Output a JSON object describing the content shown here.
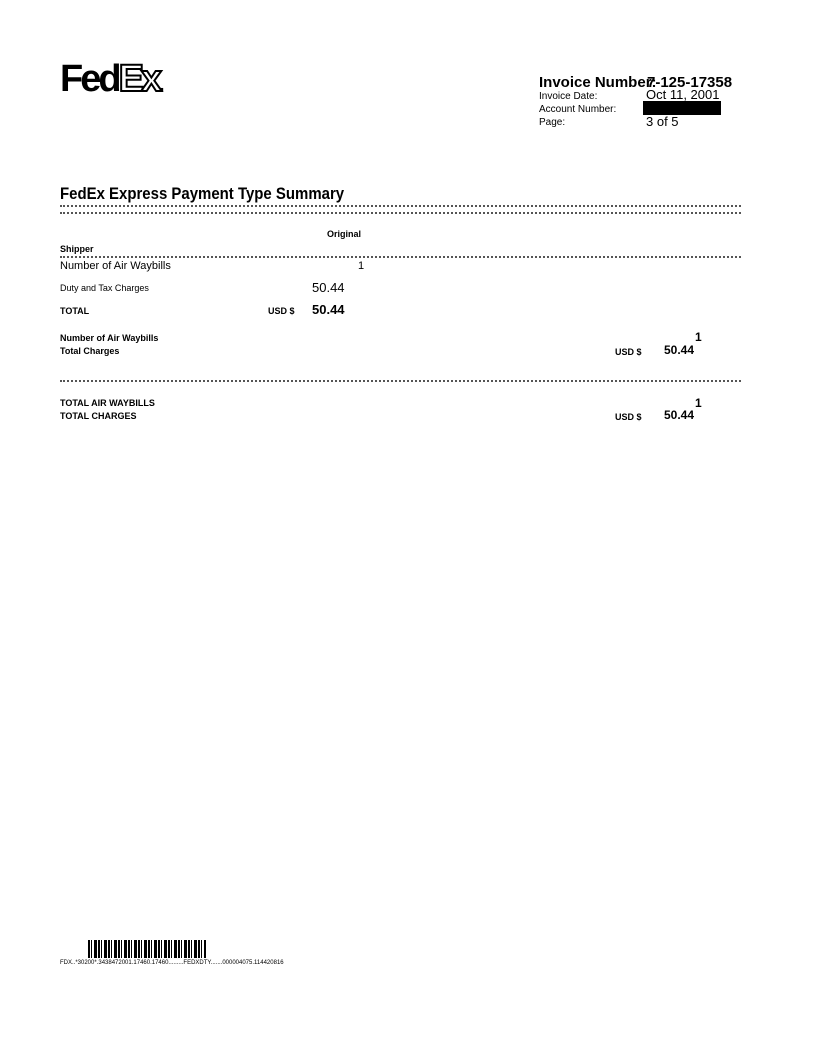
{
  "logo": {
    "text": "FedEx",
    "fed": "Fed",
    "ex": "Ex"
  },
  "header": {
    "invoice_number_label": "Invoice Number:",
    "invoice_number": "7-125-17358",
    "invoice_date_label": "Invoice Date:",
    "invoice_date": "Oct 11, 2001",
    "account_number_label": "Account Number:",
    "page_label": "Page:",
    "page_value": "3 of 5"
  },
  "title": "FedEx Express Payment Type Summary",
  "table": {
    "column_header": "Original",
    "section": "Shipper",
    "rows": [
      {
        "label": "Number of Air Waybills",
        "value": "1"
      },
      {
        "label": "Duty and Tax Charges",
        "value": "50.44"
      }
    ],
    "total_label": "TOTAL",
    "total_currency": "USD $",
    "total_value": "50.44"
  },
  "subtotal": {
    "waybills_label": "Number of Air Waybills",
    "waybills_value": "1",
    "charges_label": "Total Charges",
    "currency": "USD $",
    "charges_value": "50.44"
  },
  "grand_total": {
    "waybills_label": "TOTAL AIR WAYBILLS",
    "waybills_value": "1",
    "charges_label": "TOTAL CHARGES",
    "currency": "USD $",
    "charges_value": "50.44"
  },
  "footer": {
    "barcode_text": "FDX..*30200*.3438472001.17460.17460.........FEDXDTY.......000004075.114420816"
  }
}
